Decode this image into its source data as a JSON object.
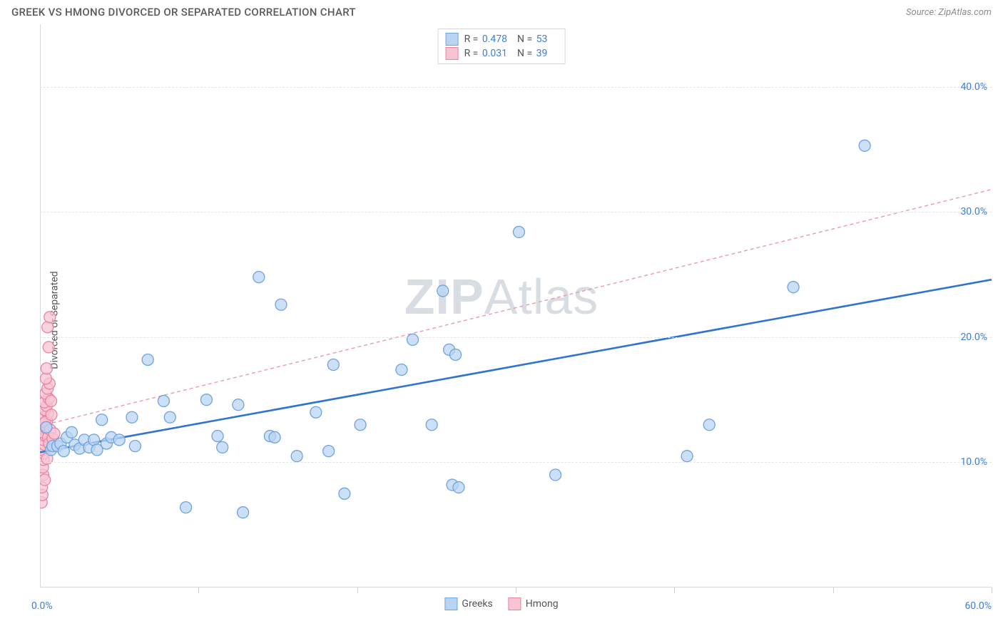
{
  "header": {
    "title": "GREEK VS HMONG DIVORCED OR SEPARATED CORRELATION CHART",
    "source": "Source: ZipAtlas.com"
  },
  "watermark": "ZIPAtlas",
  "chart": {
    "type": "scatter",
    "ylabel": "Divorced or Separated",
    "xlim": [
      0,
      60
    ],
    "ylim": [
      0,
      45
    ],
    "xtick_positions": [
      0,
      10,
      20,
      30,
      40,
      50,
      60
    ],
    "xtick_labels_shown": {
      "0": "0.0%",
      "60": "60.0%"
    },
    "ytick_positions": [
      10,
      20,
      30,
      40
    ],
    "ytick_labels": [
      "10.0%",
      "20.0%",
      "30.0%",
      "40.0%"
    ],
    "background_color": "#ffffff",
    "grid_color": "#e4e4e4",
    "border_color": "#d8d8d8",
    "label_color": "#3b7fd9",
    "marker_radius": 8,
    "marker_stroke_width": 1.3,
    "series": {
      "greeks": {
        "label": "Greeks",
        "fill": "#b9d4f3",
        "stroke": "#6fa3dc",
        "fill_opacity": 0.75,
        "regression": {
          "x1": 0,
          "y1": 10.8,
          "x2": 60,
          "y2": 24.6,
          "color": "#2f74d0",
          "width": 2.6,
          "dash": "none"
        },
        "points": [
          [
            0.4,
            12.8
          ],
          [
            0.7,
            11.0
          ],
          [
            0.8,
            11.3
          ],
          [
            1.1,
            11.3
          ],
          [
            1.3,
            11.5
          ],
          [
            1.5,
            10.9
          ],
          [
            1.7,
            12.0
          ],
          [
            2.0,
            12.4
          ],
          [
            2.2,
            11.4
          ],
          [
            2.5,
            11.1
          ],
          [
            2.8,
            11.8
          ],
          [
            3.1,
            11.2
          ],
          [
            3.4,
            11.8
          ],
          [
            3.6,
            11.0
          ],
          [
            3.9,
            13.4
          ],
          [
            4.2,
            11.5
          ],
          [
            4.5,
            12.0
          ],
          [
            5.0,
            11.8
          ],
          [
            5.8,
            13.6
          ],
          [
            6.0,
            11.3
          ],
          [
            6.8,
            18.2
          ],
          [
            7.8,
            14.9
          ],
          [
            8.2,
            13.6
          ],
          [
            9.2,
            6.4
          ],
          [
            10.5,
            15.0
          ],
          [
            11.2,
            12.1
          ],
          [
            11.5,
            11.2
          ],
          [
            12.5,
            14.6
          ],
          [
            12.8,
            6.0
          ],
          [
            13.8,
            24.8
          ],
          [
            14.5,
            12.1
          ],
          [
            15.2,
            22.6
          ],
          [
            16.2,
            10.5
          ],
          [
            17.4,
            14.0
          ],
          [
            18.2,
            10.9
          ],
          [
            18.5,
            17.8
          ],
          [
            19.2,
            7.5
          ],
          [
            20.2,
            13.0
          ],
          [
            22.8,
            17.4
          ],
          [
            23.5,
            19.8
          ],
          [
            24.7,
            13.0
          ],
          [
            25.4,
            23.7
          ],
          [
            25.8,
            19.0
          ],
          [
            26.2,
            18.6
          ],
          [
            26.0,
            8.2
          ],
          [
            26.4,
            8.0
          ],
          [
            30.2,
            28.4
          ],
          [
            32.5,
            9.0
          ],
          [
            40.8,
            10.5
          ],
          [
            42.2,
            13.0
          ],
          [
            47.5,
            24.0
          ],
          [
            52.0,
            35.3
          ],
          [
            14.8,
            12.0
          ]
        ]
      },
      "hmong": {
        "label": "Hmong",
        "fill": "#f7c4d2",
        "stroke": "#e884a3",
        "fill_opacity": 0.72,
        "regression": {
          "x1": 0,
          "y1": 12.9,
          "x2": 60,
          "y2": 31.8,
          "color": "#e99ab0",
          "width": 1.4,
          "dash": "5,4"
        },
        "points": [
          [
            0.1,
            6.8
          ],
          [
            0.15,
            7.4
          ],
          [
            0.12,
            8.0
          ],
          [
            0.2,
            9.0
          ],
          [
            0.18,
            9.6
          ],
          [
            0.22,
            10.2
          ],
          [
            0.25,
            10.7
          ],
          [
            0.15,
            11.0
          ],
          [
            0.3,
            11.4
          ],
          [
            0.2,
            11.8
          ],
          [
            0.35,
            12.1
          ],
          [
            0.18,
            12.4
          ],
          [
            0.4,
            12.7
          ],
          [
            0.25,
            13.0
          ],
          [
            0.45,
            13.3
          ],
          [
            0.22,
            13.6
          ],
          [
            0.5,
            13.9
          ],
          [
            0.3,
            14.2
          ],
          [
            0.42,
            14.5
          ],
          [
            0.28,
            14.8
          ],
          [
            0.55,
            15.1
          ],
          [
            0.35,
            15.5
          ],
          [
            0.48,
            15.9
          ],
          [
            0.6,
            16.3
          ],
          [
            0.38,
            16.7
          ],
          [
            0.52,
            12.0
          ],
          [
            0.45,
            10.3
          ],
          [
            0.32,
            13.2
          ],
          [
            0.58,
            11.5
          ],
          [
            0.65,
            12.6
          ],
          [
            0.72,
            13.8
          ],
          [
            0.8,
            11.9
          ],
          [
            0.42,
            17.5
          ],
          [
            0.55,
            19.2
          ],
          [
            0.48,
            20.8
          ],
          [
            0.62,
            21.6
          ],
          [
            0.3,
            8.6
          ],
          [
            0.9,
            12.3
          ],
          [
            0.7,
            14.9
          ]
        ]
      }
    },
    "legend_top": [
      {
        "series": "greeks",
        "R": "0.478",
        "N": "53"
      },
      {
        "series": "hmong",
        "R": "0.031",
        "N": "39"
      }
    ],
    "legend_bottom": [
      {
        "series": "greeks"
      },
      {
        "series": "hmong"
      }
    ]
  }
}
